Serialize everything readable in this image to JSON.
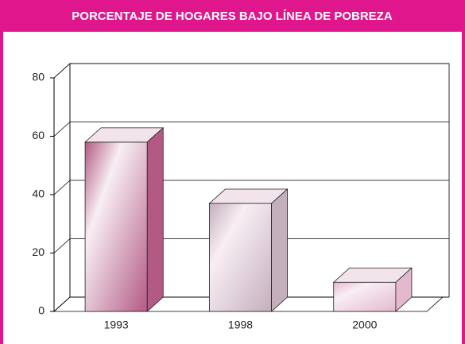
{
  "chart_data": {
    "type": "bar3d",
    "title": "PORCENTAJE DE HOGARES BAJO LÍNEA DE POBREZA",
    "categories": [
      "1993",
      "1998",
      "2000"
    ],
    "values": [
      58,
      37,
      10
    ],
    "colors": [
      "#b25a84",
      "#c4afbd",
      "#e4b8cf"
    ],
    "ylim": [
      0,
      80
    ],
    "yticks": [
      0,
      20,
      40,
      60,
      80
    ],
    "grid": true
  }
}
